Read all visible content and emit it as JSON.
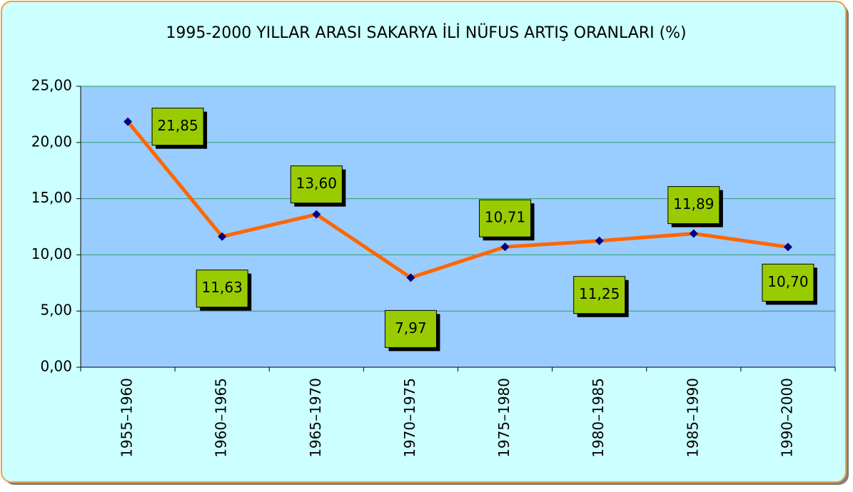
{
  "chart_data": {
    "type": "line",
    "title": "1995-2000 YILLAR ARASI SAKARYA İLİ NÜFUS ARTIŞ ORANLARI (%)",
    "categories": [
      "1955–1960",
      "1960–1965",
      "1965–1970",
      "1970–1975",
      "1975–1980",
      "1980–1985",
      "1985–1990",
      "1990–2000"
    ],
    "series": [
      {
        "name": null,
        "color": "#ff6600",
        "marker_color": "#000080",
        "values": [
          21.85,
          11.63,
          13.6,
          7.97,
          10.71,
          11.25,
          11.89,
          10.7
        ],
        "value_labels": [
          "21,85",
          "11,63",
          "13,60",
          "7,97",
          "10,71",
          "11,25",
          "11,89",
          "10,70"
        ]
      }
    ],
    "ylim": [
      0,
      25
    ],
    "yticks": [
      {
        "value": 0,
        "label": "0,00"
      },
      {
        "value": 5,
        "label": "5,00"
      },
      {
        "value": 10,
        "label": "10,00"
      },
      {
        "value": 15,
        "label": "15,00"
      },
      {
        "value": 20,
        "label": "20,00"
      },
      {
        "value": 25,
        "label": "25,00"
      }
    ],
    "grid": true
  }
}
